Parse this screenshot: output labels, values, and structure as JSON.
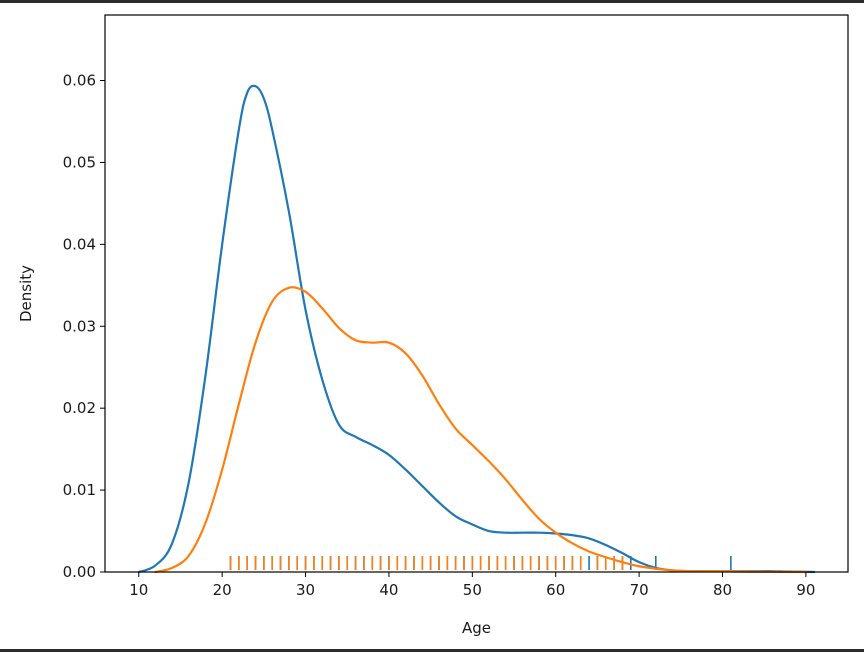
{
  "chart_data": {
    "type": "line",
    "xlabel": "Age",
    "ylabel": "Density",
    "xlim": [
      5.95,
      95.05
    ],
    "ylim": [
      0,
      0.068
    ],
    "x_ticks": [
      10,
      20,
      30,
      40,
      50,
      60,
      70,
      80,
      90
    ],
    "y_ticks": [
      0.0,
      0.01,
      0.02,
      0.03,
      0.04,
      0.05,
      0.06
    ],
    "x_tick_labels": [
      "10",
      "20",
      "30",
      "40",
      "50",
      "60",
      "70",
      "80",
      "90"
    ],
    "y_tick_labels": [
      "0.00",
      "0.01",
      "0.02",
      "0.03",
      "0.04",
      "0.05",
      "0.06"
    ],
    "grid": false,
    "series": [
      {
        "color": "#1f77b4",
        "x": [
          10,
          12,
          14,
          16,
          18,
          20,
          22,
          23,
          24,
          25,
          26,
          28,
          30,
          32,
          34,
          36,
          38,
          40,
          42,
          44,
          46,
          48,
          50,
          52,
          54,
          56,
          58,
          60,
          62,
          64,
          66,
          68,
          70,
          72,
          74,
          76,
          78,
          80,
          82,
          84,
          86,
          88,
          91
        ],
        "y": [
          0.0,
          0.0008,
          0.0035,
          0.011,
          0.024,
          0.04,
          0.054,
          0.0585,
          0.0593,
          0.0578,
          0.054,
          0.044,
          0.032,
          0.0235,
          0.018,
          0.0165,
          0.0155,
          0.0143,
          0.0125,
          0.0105,
          0.0085,
          0.0068,
          0.0058,
          0.005,
          0.0048,
          0.0048,
          0.0048,
          0.0047,
          0.0045,
          0.0041,
          0.0033,
          0.0023,
          0.0012,
          0.0005,
          0.0002,
          0.0001,
          0.0001,
          0.0001,
          0.0001,
          0.0001,
          0.0001,
          5e-05,
          0.0
        ]
      },
      {
        "color": "#ff7f0e",
        "x": [
          12,
          14,
          16,
          18,
          20,
          22,
          24,
          26,
          28,
          30,
          32,
          34,
          36,
          38,
          40,
          42,
          44,
          46,
          48,
          50,
          52,
          54,
          56,
          58,
          60,
          62,
          64,
          66,
          68,
          70,
          72,
          74,
          76,
          78,
          80,
          82,
          84,
          86,
          88,
          90
        ],
        "y": [
          0.0,
          0.0005,
          0.002,
          0.006,
          0.0125,
          0.0205,
          0.028,
          0.033,
          0.0347,
          0.0342,
          0.0322,
          0.0298,
          0.0283,
          0.028,
          0.028,
          0.0267,
          0.024,
          0.0205,
          0.0175,
          0.0155,
          0.0135,
          0.0113,
          0.0088,
          0.0065,
          0.0048,
          0.0035,
          0.0025,
          0.0018,
          0.0012,
          0.0007,
          0.0004,
          0.0002,
          0.0001,
          0.0001,
          0.0001,
          5e-05,
          3e-05,
          2e-05,
          1e-05,
          0.0
        ]
      }
    ],
    "rug": [
      {
        "color": "#1f77b4",
        "values": [
          21,
          22,
          23,
          24,
          25,
          26,
          27,
          28,
          29,
          30,
          31,
          32,
          33,
          34,
          35,
          36,
          37,
          38,
          39,
          40,
          41,
          42,
          43,
          44,
          45,
          46,
          47,
          48,
          49,
          50,
          51,
          52,
          53,
          54,
          55,
          56,
          57,
          58,
          59,
          60,
          61,
          62,
          63,
          64,
          65,
          66,
          67,
          68,
          69,
          72,
          81
        ]
      },
      {
        "color": "#ff7f0e",
        "values": [
          21,
          22,
          23,
          24,
          25,
          26,
          27,
          28,
          29,
          30,
          31,
          32,
          33,
          34,
          35,
          36,
          37,
          38,
          39,
          40,
          41,
          42,
          43,
          44,
          45,
          46,
          47,
          48,
          49,
          50,
          51,
          52,
          53,
          54,
          55,
          56,
          57,
          58,
          59,
          60,
          61,
          62,
          63,
          65,
          66,
          67,
          68
        ]
      }
    ]
  }
}
